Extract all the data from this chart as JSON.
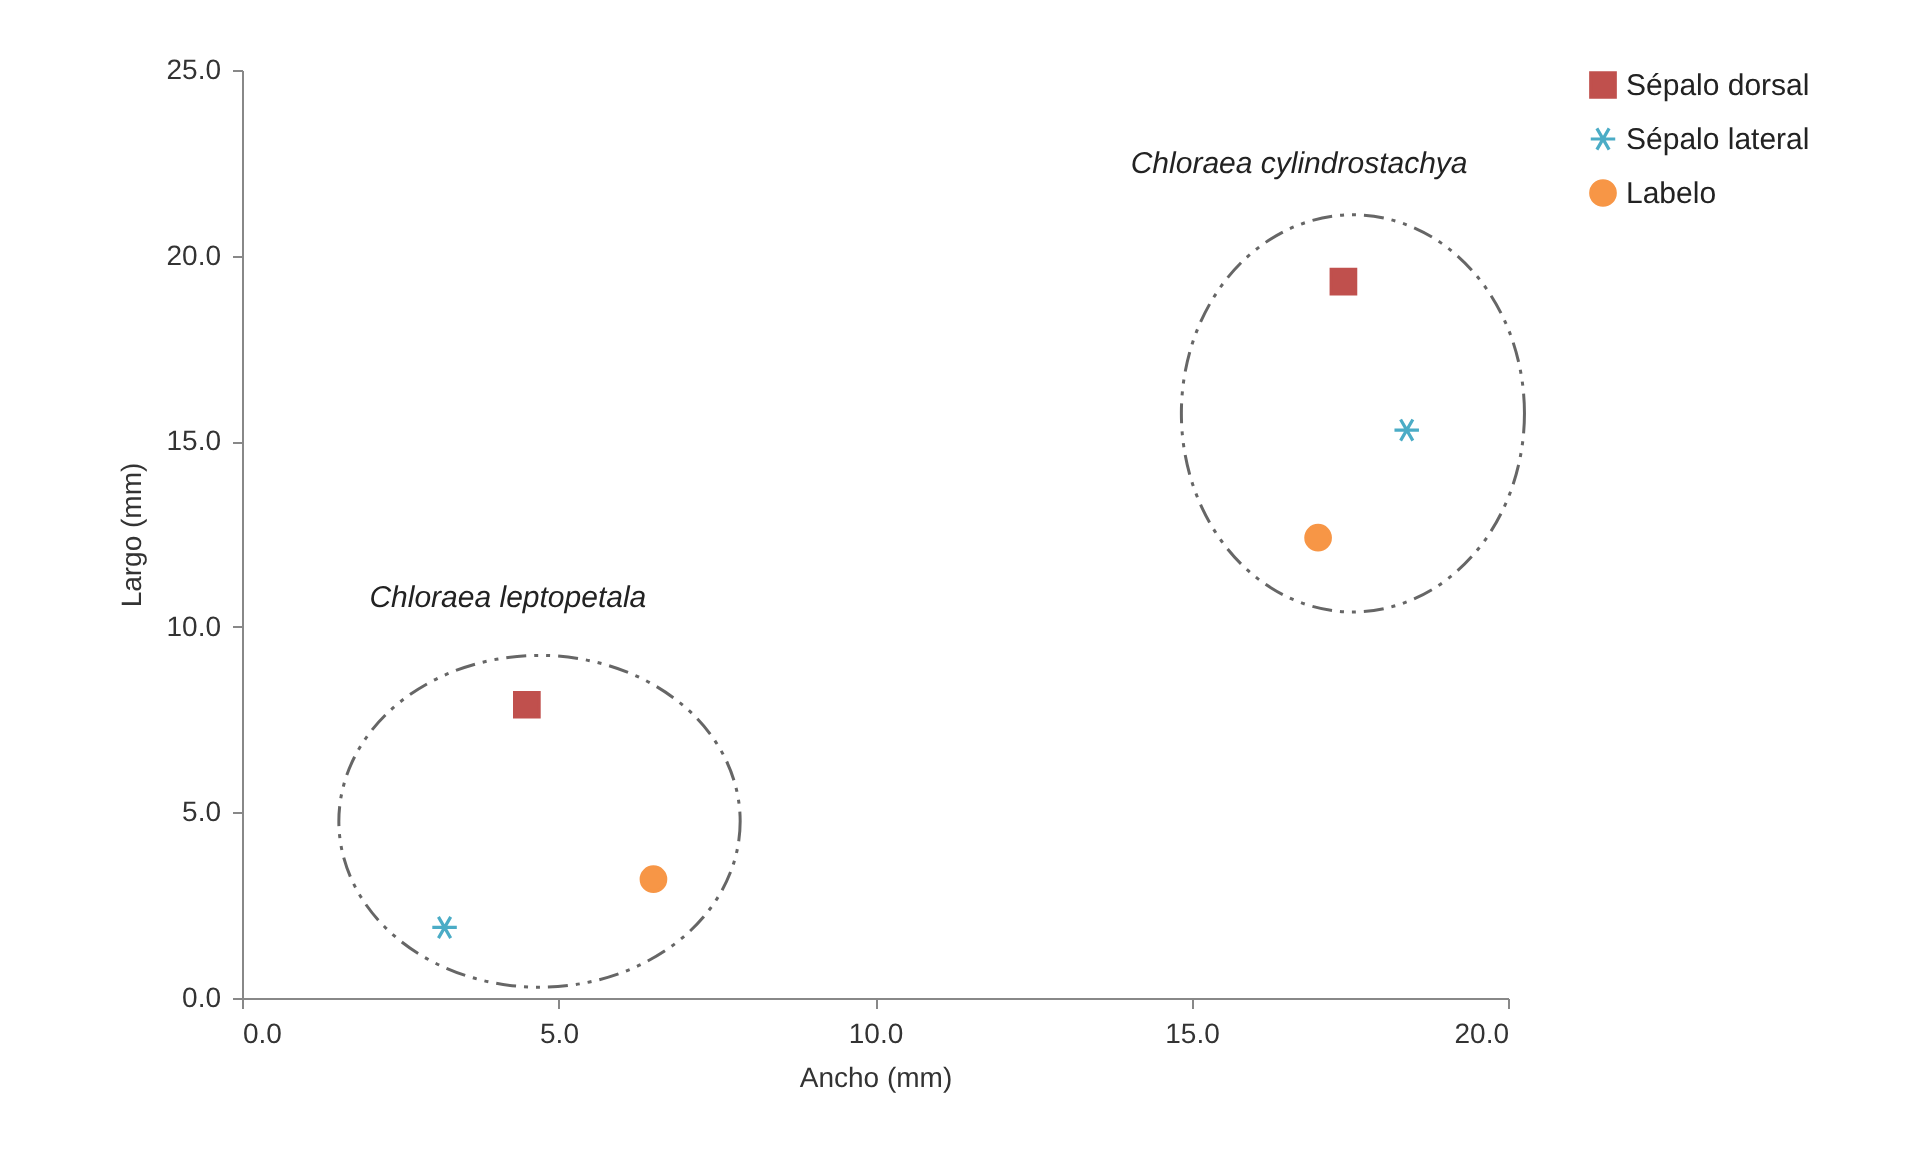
{
  "chart_data": {
    "type": "scatter",
    "xlabel": "Ancho (mm)",
    "ylabel": "Largo (mm)",
    "xlim": [
      0,
      20
    ],
    "xticks": [
      {
        "value": 0,
        "label": "0.0"
      },
      {
        "value": 5,
        "label": "5.0"
      },
      {
        "value": 10,
        "label": "10.0"
      },
      {
        "value": 15,
        "label": "15.0"
      },
      {
        "value": 20,
        "label": "20.0"
      }
    ],
    "ylim": [
      0,
      25
    ],
    "yticks": [
      {
        "value": 0,
        "label": "0.0"
      },
      {
        "value": 5,
        "label": "5.0"
      },
      {
        "value": 10,
        "label": "10.0"
      },
      {
        "value": 15,
        "label": "15.0"
      },
      {
        "value": 20,
        "label": "20.0"
      },
      {
        "value": 25,
        "label": "25.0"
      }
    ],
    "grid": false,
    "legend": "right",
    "series": [
      {
        "name": "Sépalo dorsal",
        "color": "#c0504d",
        "marker": "square",
        "x": [
          4.5,
          17.4
        ],
        "values": [
          7.9,
          19.3
        ]
      },
      {
        "name": "Sépalo lateral",
        "color": "#4bacc6",
        "marker": "cross",
        "x": [
          3.2,
          18.4
        ],
        "values": [
          1.9,
          15.3
        ]
      },
      {
        "name": "Labelo",
        "color": "#f79646",
        "marker": "circle",
        "x": [
          6.5,
          17.0
        ],
        "values": [
          3.2,
          12.4
        ]
      }
    ],
    "annotations": [
      "Chloraea leptopetala",
      "Chloraea cylindrostachya"
    ]
  }
}
